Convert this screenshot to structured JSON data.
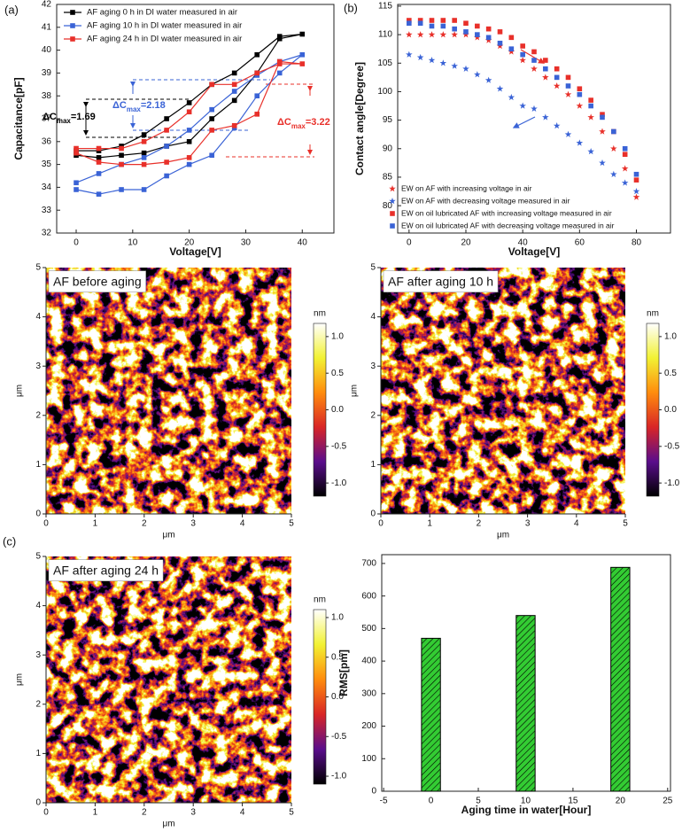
{
  "chart_data": [
    {
      "type": "line",
      "panel_label": "(a)",
      "x_label": "Voltage[V]",
      "y_label": "Capacitance[pF]",
      "x": [
        0,
        4,
        8,
        12,
        16,
        20,
        24,
        28,
        32,
        36,
        40,
        36,
        32,
        28,
        24,
        20,
        16,
        12,
        8,
        4,
        0
      ],
      "xlim": [
        -3.45,
        45.6
      ],
      "xticks": [
        0,
        10,
        20,
        30,
        40
      ],
      "ylim": [
        32,
        42
      ],
      "yticks": [
        32,
        33,
        34,
        35,
        36,
        37,
        38,
        39,
        40,
        41,
        42
      ],
      "marker": "square",
      "legend": "upper left",
      "series": [
        {
          "name": "AF aging 0 h in DI water measured in air",
          "color": "#000000",
          "values": [
            35.6,
            35.6,
            35.8,
            36.3,
            37.0,
            37.7,
            38.5,
            39.0,
            39.8,
            40.6,
            40.7,
            40.5,
            39.0,
            37.8,
            37.0,
            36.0,
            35.8,
            35.5,
            35.4,
            35.3,
            35.4
          ]
        },
        {
          "name": "AF aging 10 h in DI water measured in air",
          "color": "#3a63d6",
          "values": [
            34.2,
            34.6,
            35.0,
            35.3,
            35.8,
            36.5,
            37.4,
            38.2,
            38.9,
            39.5,
            39.8,
            39.0,
            38.0,
            36.6,
            35.4,
            35.0,
            34.5,
            33.9,
            33.9,
            33.7,
            33.9
          ]
        },
        {
          "name": "AF aging 24 h in DI water measured in air",
          "color": "#e8302a",
          "values": [
            35.7,
            35.7,
            35.7,
            36.0,
            36.5,
            37.3,
            38.5,
            38.5,
            39.0,
            39.4,
            39.4,
            39.5,
            37.2,
            36.7,
            36.5,
            35.3,
            35.1,
            35.0,
            35.0,
            35.1,
            35.5
          ]
        }
      ],
      "annotations": [
        {
          "label": "ΔC",
          "subscript": "max",
          "text": "=1.69",
          "color": "#000000"
        },
        {
          "label": "ΔC",
          "subscript": "max",
          "text": "=2.18",
          "color": "#3a63d6"
        },
        {
          "label": "ΔC",
          "subscript": "max",
          "text": "=3.22",
          "color": "#e8302a"
        }
      ]
    },
    {
      "type": "scatter",
      "panel_label": "(b)",
      "x_label": "Voltage[V]",
      "y_label": "Contact angle[Degree]",
      "x": [
        0,
        4,
        8,
        12,
        16,
        20,
        24,
        28,
        32,
        36,
        40,
        44,
        48,
        52,
        56,
        60,
        64,
        68,
        72,
        76,
        80
      ],
      "xlim": [
        -4,
        92
      ],
      "xticks": [
        0,
        20,
        40,
        60,
        80
      ],
      "ylim": [
        75.2,
        115.3
      ],
      "yticks": [
        80,
        85,
        90,
        95,
        100,
        105,
        110,
        115
      ],
      "legend": "lower left",
      "series": [
        {
          "name": "EW on AF with increasing voltage in air",
          "color": "#e8302a",
          "marker": "star",
          "values": [
            110,
            110,
            110,
            110,
            110,
            110,
            109.5,
            109,
            108,
            107,
            105.5,
            104,
            102.5,
            101,
            99.5,
            97.5,
            95.5,
            93,
            90,
            86.5,
            81.5
          ]
        },
        {
          "name": "EW on AF with decreasing voltage measured in air",
          "color": "#3a63d6",
          "marker": "star",
          "values": [
            106.5,
            106,
            105.5,
            105,
            104.5,
            104,
            103,
            102,
            100.5,
            99,
            97.5,
            97,
            95.5,
            94,
            92.5,
            91,
            89.5,
            87.5,
            85.5,
            84,
            82.5
          ]
        },
        {
          "name": "EW on oil lubricated AF with increasing voltage measured in air",
          "color": "#e8302a",
          "marker": "square",
          "values": [
            112.5,
            112.5,
            112.5,
            112.5,
            112.5,
            112,
            111.5,
            111,
            110.5,
            109.5,
            108,
            107,
            105.5,
            104,
            102.5,
            100.5,
            98.5,
            96,
            93,
            89,
            84.5
          ]
        },
        {
          "name": "EW on oil lubricated AF with decreasing voltage measured in air",
          "color": "#3a63d6",
          "marker": "square",
          "values": [
            112,
            112,
            111.5,
            111.5,
            111,
            110.5,
            110,
            109.5,
            108.5,
            107.5,
            106.5,
            105.5,
            104,
            102.5,
            101,
            99.5,
            97.5,
            95.5,
            93,
            90,
            85.5
          ]
        }
      ]
    },
    {
      "type": "heatmap",
      "label": "AF before aging",
      "x_label": "μm",
      "y_label": "μm",
      "xlim": [
        0,
        5
      ],
      "xticks": [
        0,
        1,
        2,
        3,
        4,
        5
      ],
      "ylim": [
        0,
        5
      ],
      "yticks": [
        0,
        1,
        2,
        3,
        4,
        5
      ],
      "colorbar_label": "nm",
      "colorbar_lim": [
        -1.18,
        1.18
      ],
      "colorbar_ticks": [
        {
          "value": 1,
          "label": "1.0"
        },
        0.5,
        {
          "value": 0,
          "label": "0.0"
        },
        -0.5,
        {
          "value": -1,
          "label": "-1.0"
        }
      ],
      "colormap": [
        "#000000",
        "#5a0d8c",
        "#d92626",
        "#ff8c0d",
        "#f2f233",
        "#ffffff"
      ]
    },
    {
      "type": "heatmap",
      "label": "AF after aging 10 h",
      "x_label": "μm",
      "y_label": "μm",
      "xlim": [
        0,
        5
      ],
      "xticks": [
        0,
        1,
        2,
        3,
        4,
        5
      ],
      "ylim": [
        0,
        5
      ],
      "yticks": [
        0,
        1,
        2,
        3,
        4,
        5
      ],
      "colorbar_label": "nm",
      "colorbar_lim": [
        -1.18,
        1.18
      ],
      "colorbar_ticks": [
        {
          "value": 1,
          "label": "1.0"
        },
        0.5,
        {
          "value": 0,
          "label": "0.0"
        },
        -0.5,
        {
          "value": -1,
          "label": "-1.0"
        }
      ],
      "colormap": [
        "#000000",
        "#5a0d8c",
        "#d92626",
        "#ff8c0d",
        "#f2f233",
        "#ffffff"
      ]
    },
    {
      "type": "heatmap",
      "panel_label": "(c)",
      "label": "AF after aging 24 h",
      "x_label": "μm",
      "y_label": "μm",
      "xlim": [
        0,
        5
      ],
      "xticks": [
        0,
        1,
        2,
        3,
        4,
        5
      ],
      "ylim": [
        0,
        5
      ],
      "yticks": [
        0,
        1,
        2,
        3,
        4,
        5
      ],
      "colorbar_label": "nm",
      "colorbar_lim": [
        -1.1,
        1.1
      ],
      "colorbar_ticks": [
        {
          "value": 1,
          "label": "1.0"
        },
        0.5,
        {
          "value": 0,
          "label": "0.0"
        },
        -0.5,
        {
          "value": -1,
          "label": "-1.0"
        }
      ],
      "colormap": [
        "#000000",
        "#5a0d8c",
        "#d92626",
        "#ff8c0d",
        "#f2f233",
        "#ffffff"
      ]
    },
    {
      "type": "bar",
      "x_label": "Aging time in water[Hour]",
      "y_label": "RMS[pm]",
      "x": [
        0,
        10,
        20
      ],
      "values": [
        470,
        540,
        688
      ],
      "color": "#33cc33",
      "hatch": true,
      "xlim": [
        -5.2,
        25.3
      ],
      "xticks": [
        -5,
        0,
        5,
        10,
        15,
        20,
        25
      ],
      "ylim": [
        0,
        727
      ],
      "yticks": [
        0,
        100,
        200,
        300,
        400,
        500,
        600,
        700
      ]
    }
  ]
}
